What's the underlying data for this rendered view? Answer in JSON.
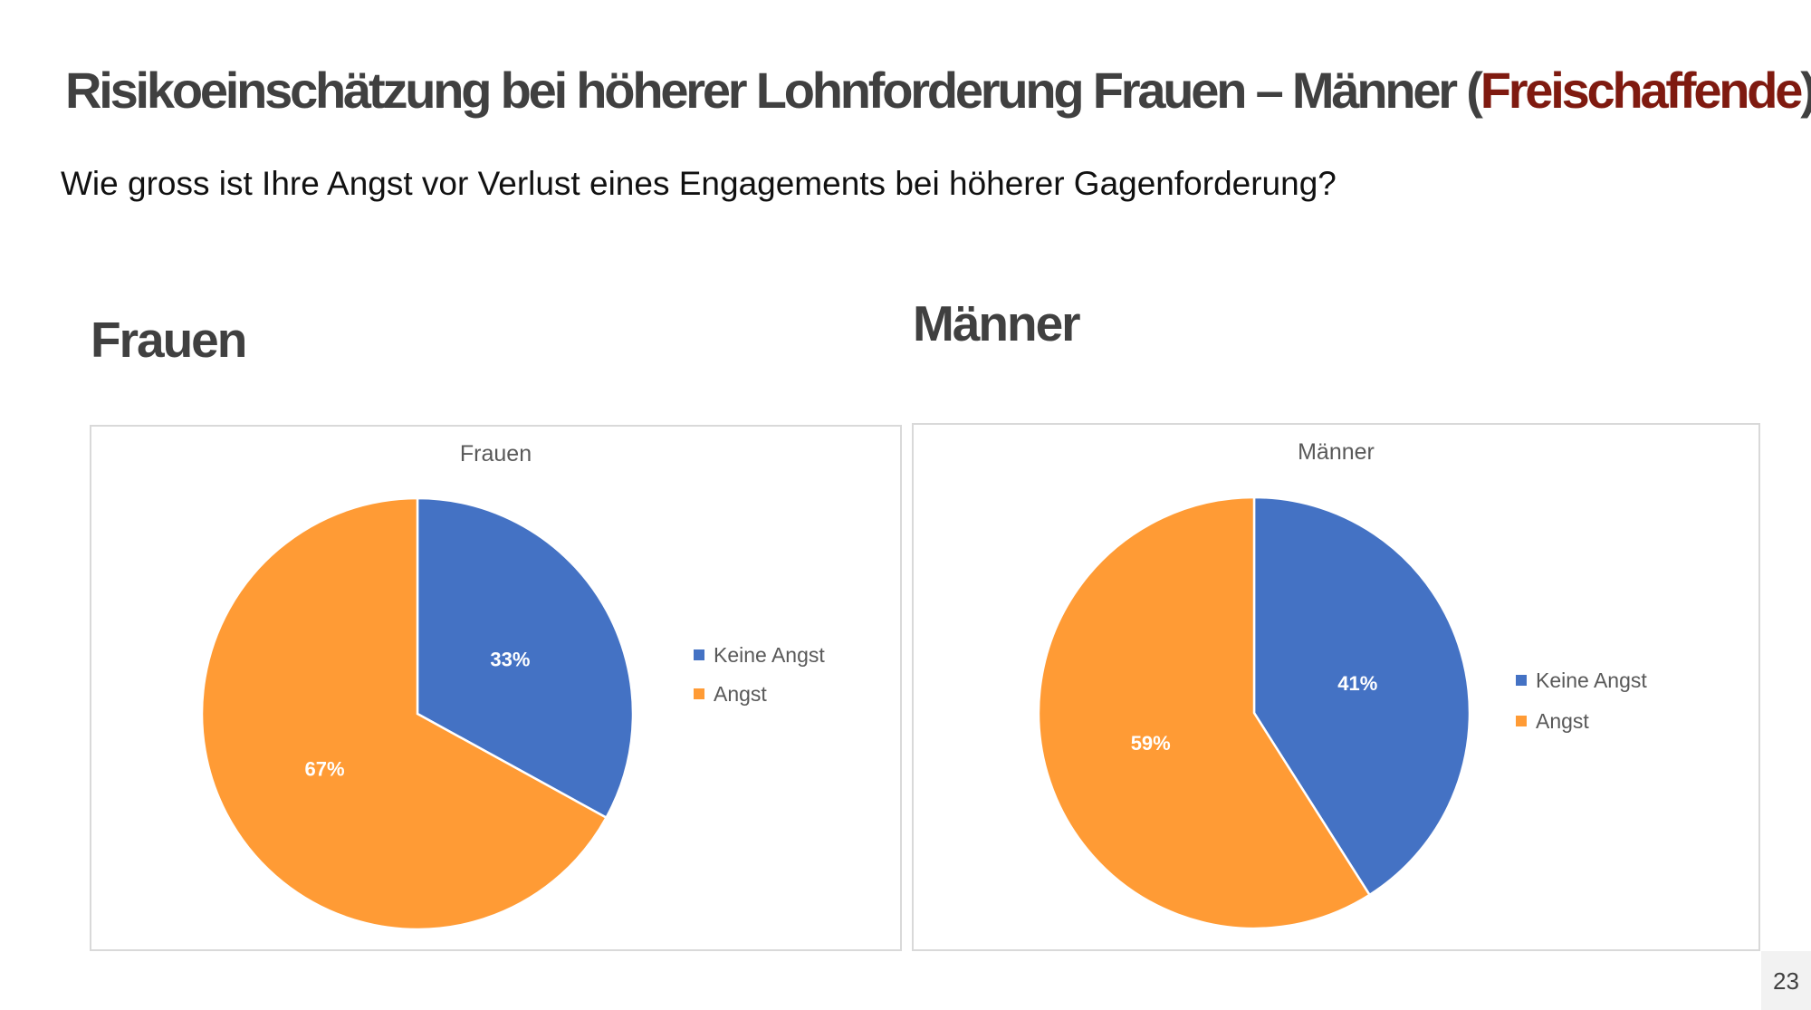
{
  "slide": {
    "title_main": "Risikoeinschätzung bei höherer Lohnforderung Frauen – Männer (",
    "title_accent": "Freischaffende",
    "title_close": ")",
    "subtitle": "Wie gross ist Ihre Angst vor Verlust eines Engagements bei höherer Gagenforderung?",
    "heading_left": "Frauen",
    "heading_right": "Männer",
    "page_number": "23"
  },
  "colors": {
    "keine_angst": "#4472c4",
    "angst": "#ff9b35",
    "title_accent": "#7f1a10",
    "text_dark": "#404040"
  },
  "chart_data": [
    {
      "type": "pie",
      "title": "Frauen",
      "categories": [
        "Keine Angst",
        "Angst"
      ],
      "values": [
        33,
        67
      ],
      "labels": [
        "33%",
        "67%"
      ],
      "legend_position": "right",
      "start_angle_deg": 0,
      "direction": "clockwise"
    },
    {
      "type": "pie",
      "title": "Männer",
      "categories": [
        "Keine Angst",
        "Angst"
      ],
      "values": [
        41,
        59
      ],
      "labels": [
        "41%",
        "59%"
      ],
      "legend_position": "right",
      "start_angle_deg": 0,
      "direction": "clockwise"
    }
  ]
}
